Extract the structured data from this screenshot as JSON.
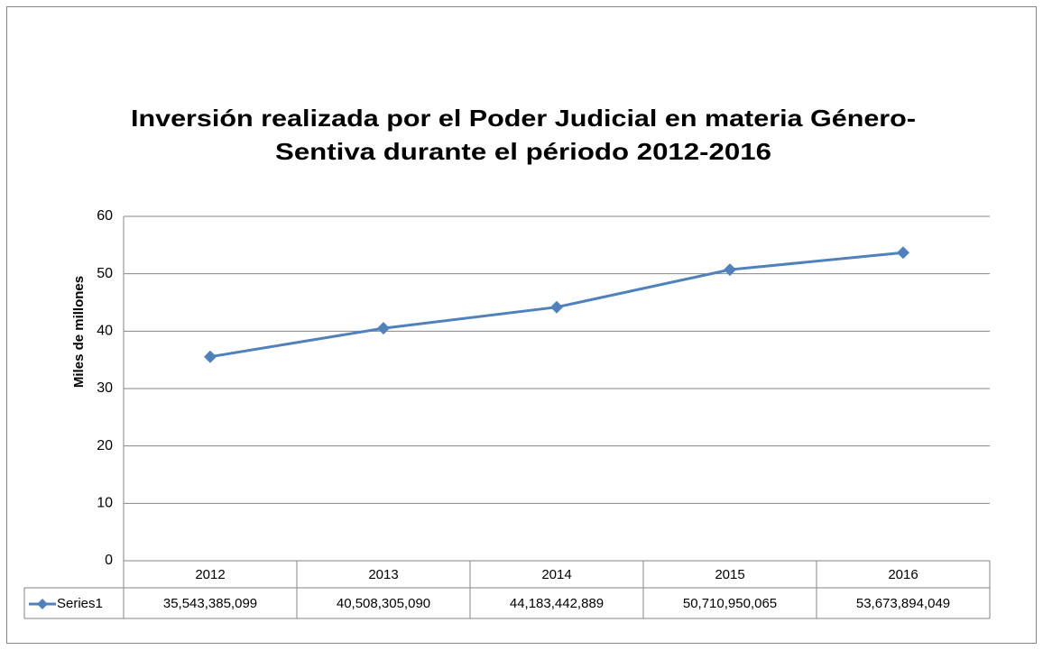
{
  "chart_data": {
    "type": "line",
    "title": [
      "Inversión realizada por el Poder Judicial en materia Género-",
      "Sentiva durante el périodo 2012-2016"
    ],
    "y_label": "Miles de millones",
    "categories": [
      "2012",
      "2013",
      "2014",
      "2015",
      "2016"
    ],
    "series": [
      {
        "name": "Series1",
        "color": "#4f81bd",
        "values": [
          35.543385099,
          40.50830509,
          44.183442889,
          50.710950065,
          53.673894049
        ],
        "value_labels": [
          "35,543,385,099",
          "40,508,305,090",
          "44,183,442,889",
          "50,710,950,065",
          "53,673,894,049"
        ]
      }
    ],
    "ylim": [
      0,
      60
    ],
    "yticks": [
      0,
      10,
      20,
      30,
      40,
      50,
      60
    ],
    "grid": true,
    "data_table": true
  }
}
